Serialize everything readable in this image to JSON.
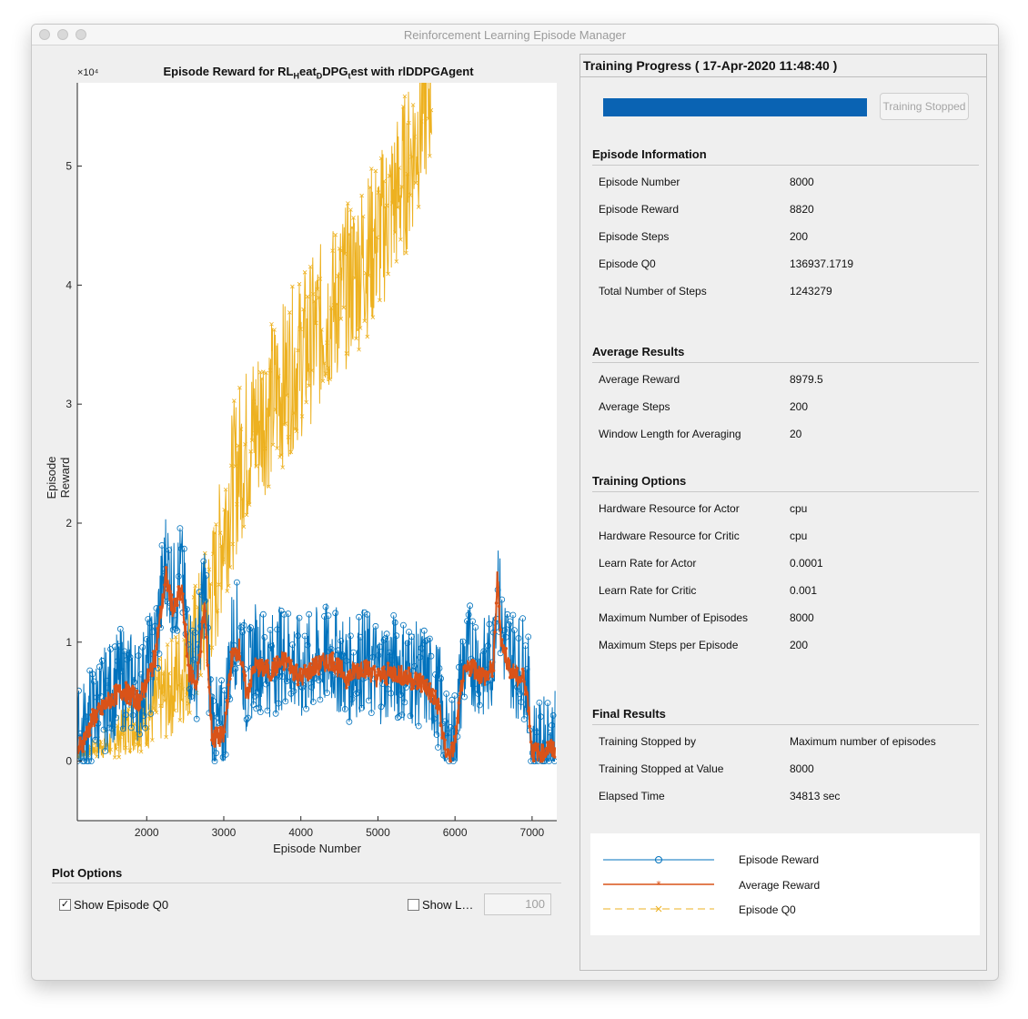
{
  "window": {
    "title": "Reinforcement Learning Episode Manager"
  },
  "plot": {
    "title_main": "Episode  Reward  for  RL",
    "title_sub1": "H",
    "title_mid": "eat",
    "title_sub2": "D",
    "title_mid2": "DPG",
    "title_sub3": "t",
    "title_end": "est  with  rlDDPGAgent",
    "exponent": "×10⁴"
  },
  "chart_data": {
    "type": "line",
    "xlabel": "Episode Number",
    "ylabel": "Episode Reward",
    "xlim": [
      1100,
      7320
    ],
    "ylim": [
      -5000,
      57000
    ],
    "xticks": [
      "2000",
      "3000",
      "4000",
      "5000",
      "6000",
      "7000"
    ],
    "yticks": [
      "0",
      "1",
      "2",
      "3",
      "4",
      "5"
    ],
    "series": [
      {
        "name": "Episode Reward",
        "color": "#0072bd",
        "x": [
          1100,
          1300,
          1500,
          1700,
          1900,
          2100,
          2250,
          2350,
          2450,
          2550,
          2650,
          2750,
          2850,
          2950,
          3000,
          3100,
          3200,
          3300,
          3400,
          3600,
          3800,
          4000,
          4200,
          4400,
          4600,
          4800,
          5000,
          5200,
          5400,
          5600,
          5800,
          5850,
          5900,
          5950,
          6000,
          6100,
          6200,
          6400,
          6500,
          6550,
          6600,
          6700,
          6800,
          6900,
          6950,
          7000,
          7050,
          7100,
          7200,
          7300
        ],
        "y": [
          1500,
          4000,
          5500,
          7000,
          6000,
          9000,
          17000,
          14000,
          16000,
          9000,
          8000,
          15000,
          3000,
          2500,
          2500,
          10000,
          11000,
          6000,
          9000,
          8000,
          9000,
          7500,
          8500,
          9000,
          7500,
          8500,
          7500,
          8000,
          7500,
          7000,
          5500,
          2000,
          1000,
          1000,
          2000,
          8000,
          9000,
          7500,
          9000,
          17000,
          11000,
          9000,
          8000,
          8000,
          6000,
          1000,
          1000,
          500,
          1500,
          1500
        ]
      },
      {
        "name": "Average Reward",
        "color": "#d95319",
        "x": [
          1100,
          1300,
          1500,
          1700,
          1900,
          2100,
          2250,
          2350,
          2450,
          2550,
          2650,
          2750,
          2850,
          2950,
          3000,
          3100,
          3200,
          3300,
          3400,
          3600,
          3800,
          4000,
          4200,
          4400,
          4600,
          4800,
          5000,
          5200,
          5400,
          5600,
          5800,
          5850,
          5900,
          5950,
          6000,
          6100,
          6200,
          6400,
          6500,
          6550,
          6600,
          6700,
          6800,
          6900,
          6950,
          7000,
          7050,
          7100,
          7200,
          7300
        ],
        "y": [
          700,
          3500,
          5000,
          6000,
          5000,
          8500,
          15500,
          12500,
          14500,
          7500,
          6500,
          13000,
          2000,
          2000,
          2000,
          8500,
          9500,
          5500,
          8000,
          7500,
          8500,
          7000,
          8000,
          8500,
          7000,
          8000,
          7000,
          7500,
          7000,
          6500,
          4500,
          1500,
          600,
          600,
          1500,
          7000,
          8000,
          7000,
          8000,
          15500,
          10000,
          8000,
          7000,
          7000,
          5000,
          800,
          800,
          500,
          1000,
          1000
        ]
      },
      {
        "name": "Episode Q0",
        "color": "#edb120",
        "x": [
          1100,
          1300,
          1500,
          1700,
          1900,
          2100,
          2300,
          2500,
          2700,
          2900,
          3000,
          3200,
          3400,
          3600,
          3800,
          4000,
          4200,
          4400,
          4600,
          4800,
          5000,
          5200,
          5400,
          5600,
          5700
        ],
        "y": [
          500,
          1000,
          1500,
          2500,
          3500,
          4500,
          6000,
          8000,
          11000,
          15000,
          20000,
          25000,
          28000,
          30000,
          32000,
          34000,
          36000,
          38000,
          40000,
          42000,
          44000,
          47000,
          50000,
          55000,
          57000
        ]
      }
    ]
  },
  "plot_options": {
    "title": "Plot Options",
    "show_q0_label": "Show Episode Q0",
    "show_q0_checked": "✓",
    "show_length_label": "Show L…",
    "length_value": "100"
  },
  "training": {
    "title": "Training Progress ( 17-Apr-2020 11:48:40 )",
    "progress": 1.0,
    "stop_button": "Training Stopped"
  },
  "episode_info": {
    "title": "Episode Information",
    "rows": [
      {
        "label": "Episode Number",
        "value": "8000"
      },
      {
        "label": "Episode Reward",
        "value": "8820"
      },
      {
        "label": "Episode Steps",
        "value": "200"
      },
      {
        "label": "Episode Q0",
        "value": "136937.1719"
      },
      {
        "label": "Total Number of Steps",
        "value": "1243279"
      }
    ]
  },
  "average_results": {
    "title": "Average Results",
    "rows": [
      {
        "label": "Average Reward",
        "value": "8979.5"
      },
      {
        "label": "Average Steps",
        "value": "200"
      },
      {
        "label": "Window Length for Averaging",
        "value": "20"
      }
    ]
  },
  "training_options": {
    "title": "Training Options",
    "rows": [
      {
        "label": "Hardware Resource for Actor",
        "value": "cpu"
      },
      {
        "label": "Hardware Resource for Critic",
        "value": "cpu"
      },
      {
        "label": "Learn Rate for Actor",
        "value": "0.0001"
      },
      {
        "label": "Learn Rate for Critic",
        "value": "0.001"
      },
      {
        "label": "Maximum Number of Episodes",
        "value": "8000"
      },
      {
        "label": "Maximum Steps per Episode",
        "value": "200"
      }
    ]
  },
  "final_results": {
    "title": "Final Results",
    "rows": [
      {
        "label": "Training Stopped by",
        "value": "Maximum number of episodes"
      },
      {
        "label": "Training Stopped at Value",
        "value": "8000"
      },
      {
        "label": "Elapsed Time",
        "value": "34813 sec"
      }
    ]
  },
  "legend": {
    "items": [
      {
        "label": "Episode Reward",
        "color": "#0072bd",
        "marker": "circle-icon"
      },
      {
        "label": "Average Reward",
        "color": "#d95319",
        "marker": "star-icon"
      },
      {
        "label": "Episode Q0",
        "color": "#edb120",
        "marker": "x-icon"
      }
    ]
  }
}
